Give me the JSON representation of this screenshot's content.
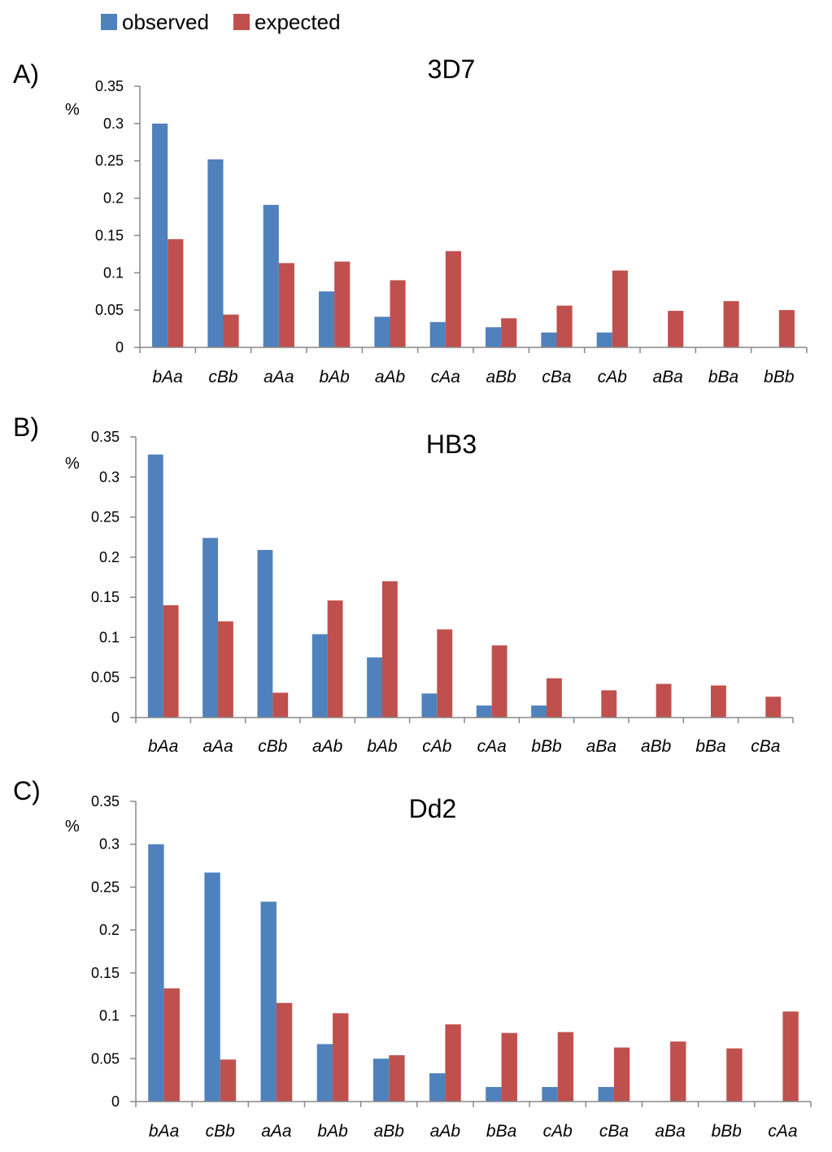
{
  "legend": {
    "observed": {
      "label": "observed",
      "color": "#4F81BD"
    },
    "expected": {
      "label": "expected",
      "color": "#C0504D"
    }
  },
  "chart_data": [
    {
      "type": "bar",
      "panel": "A)",
      "title": "3D7",
      "ylabel": "%",
      "ylim": [
        0,
        0.35
      ],
      "yticks": [
        "0",
        "0.05",
        "0.1",
        "0.15",
        "0.2",
        "0.25",
        "0.3",
        "0.35"
      ],
      "categories": [
        "bAa",
        "cBb",
        "aAa",
        "bAb",
        "aAb",
        "cAa",
        "aBb",
        "cBa",
        "cAb",
        "aBa",
        "bBa",
        "bBb"
      ],
      "series": [
        {
          "name": "observed",
          "values": [
            0.3,
            0.252,
            0.191,
            0.075,
            0.041,
            0.034,
            0.027,
            0.02,
            0.02,
            0,
            0,
            0
          ]
        },
        {
          "name": "expected",
          "values": [
            0.145,
            0.044,
            0.113,
            0.115,
            0.09,
            0.129,
            0.039,
            0.056,
            0.103,
            0.049,
            0.062,
            0.05
          ]
        }
      ]
    },
    {
      "type": "bar",
      "panel": "B)",
      "title": "HB3",
      "ylabel": "%",
      "ylim": [
        0,
        0.35
      ],
      "yticks": [
        "0",
        "0.05",
        "0.1",
        "0.15",
        "0.2",
        "0.25",
        "0.3",
        "0.35"
      ],
      "categories": [
        "bAa",
        "aAa",
        "cBb",
        "aAb",
        "bAb",
        "cAb",
        "cAa",
        "bBb",
        "aBa",
        "aBb",
        "bBa",
        "cBa"
      ],
      "series": [
        {
          "name": "observed",
          "values": [
            0.328,
            0.224,
            0.209,
            0.104,
            0.075,
            0.03,
            0.015,
            0.015,
            0,
            0,
            0,
            0
          ]
        },
        {
          "name": "expected",
          "values": [
            0.14,
            0.12,
            0.031,
            0.146,
            0.17,
            0.11,
            0.09,
            0.049,
            0.034,
            0.042,
            0.04,
            0.026
          ]
        }
      ]
    },
    {
      "type": "bar",
      "panel": "C)",
      "title": "Dd2",
      "ylabel": "%",
      "ylim": [
        0,
        0.35
      ],
      "yticks": [
        "0",
        "0.05",
        "0.1",
        "0.15",
        "0.2",
        "0.25",
        "0.3",
        "0.35"
      ],
      "categories": [
        "bAa",
        "cBb",
        "aAa",
        "bAb",
        "aBb",
        "aAb",
        "bBa",
        "cAb",
        "cBa",
        "aBa",
        "bBb",
        "cAa"
      ],
      "series": [
        {
          "name": "observed",
          "values": [
            0.3,
            0.267,
            0.233,
            0.067,
            0.05,
            0.033,
            0.017,
            0.017,
            0.017,
            0,
            0,
            0
          ]
        },
        {
          "name": "expected",
          "values": [
            0.132,
            0.049,
            0.115,
            0.103,
            0.054,
            0.09,
            0.08,
            0.081,
            0.063,
            0.07,
            0.062,
            0.105
          ]
        }
      ]
    }
  ]
}
